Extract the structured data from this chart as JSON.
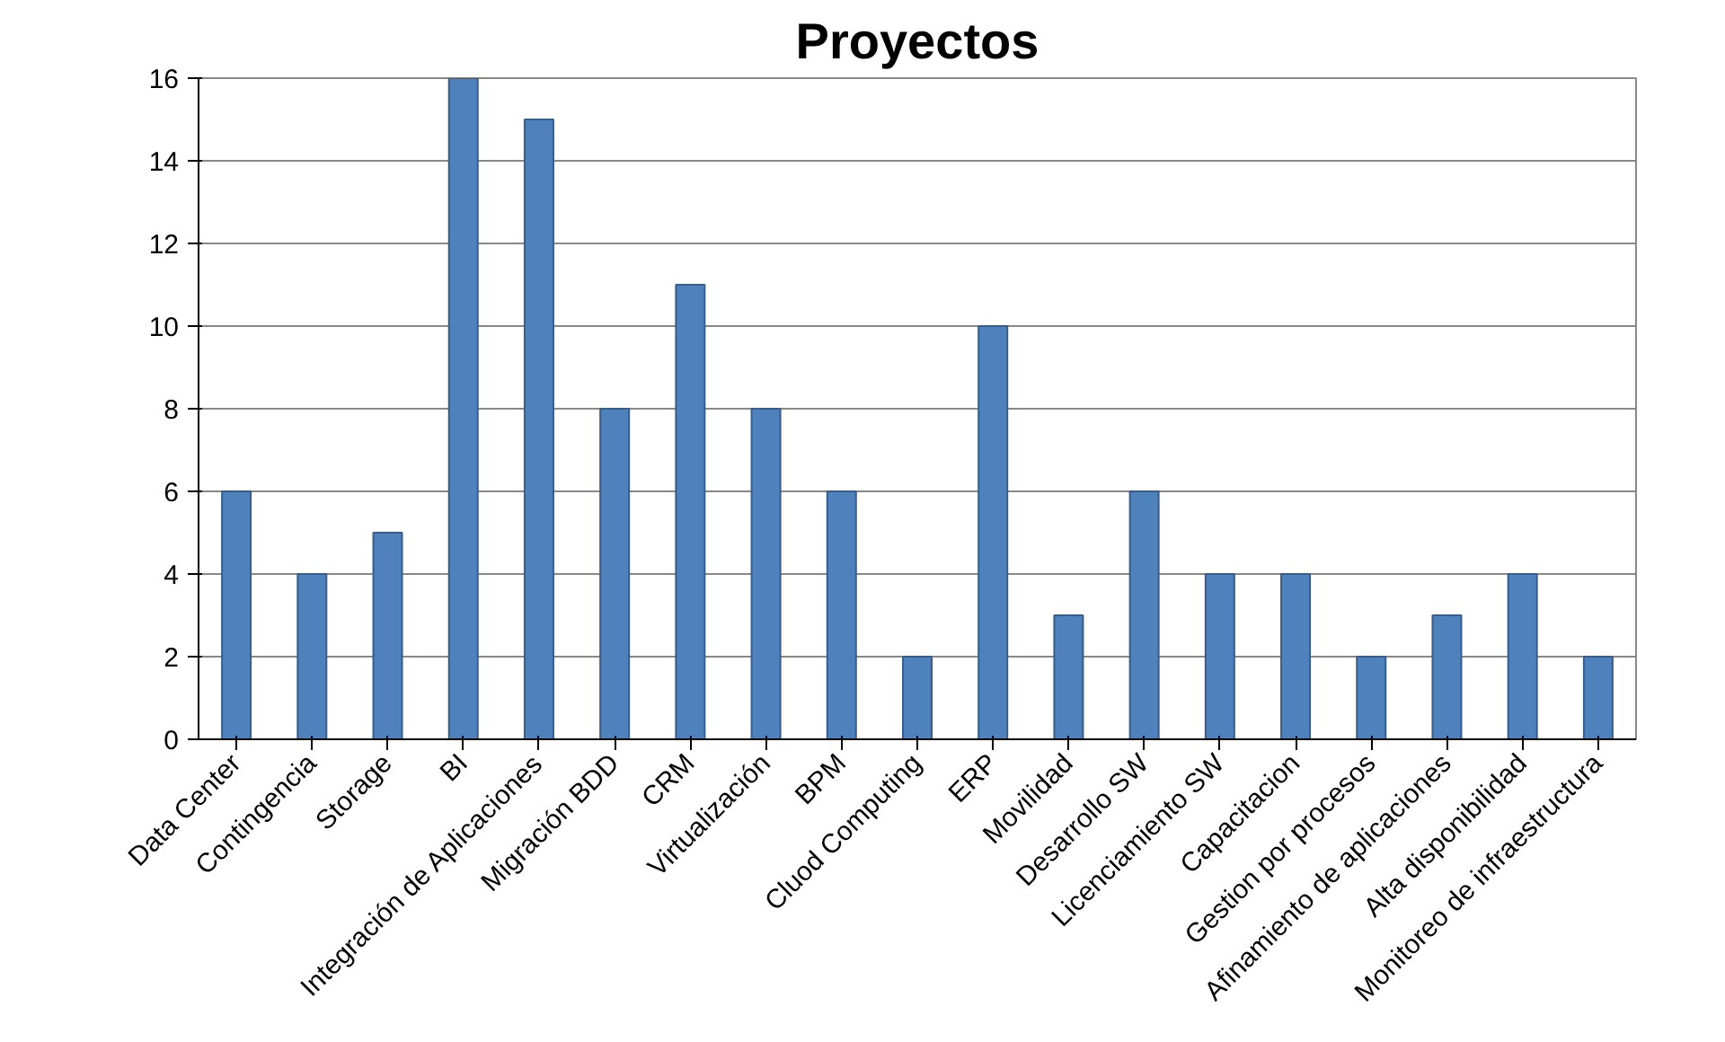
{
  "chart_data": {
    "type": "bar",
    "title": "Proyectos",
    "categories": [
      "Data Center",
      "Contingencia",
      "Storage",
      "BI",
      "Integración de Aplicaciones",
      "Migración BDD",
      "CRM",
      "Virtualización",
      "BPM",
      "Cluod Computing",
      "ERP",
      "Movilidad",
      "Desarrollo SW",
      "Licenciamiento SW",
      "Capacitacion",
      "Gestion por procesos",
      "Afinamiento de aplicaciones",
      "Alta disponibilidad",
      "Monitoreo de infraestructura"
    ],
    "values": [
      6,
      4,
      5,
      16,
      15,
      8,
      11,
      8,
      6,
      2,
      10,
      3,
      6,
      4,
      4,
      2,
      3,
      4,
      2
    ],
    "color": "#4f81bd",
    "ylim": [
      0,
      16
    ],
    "yticks": [
      0,
      2,
      4,
      6,
      8,
      10,
      12,
      14,
      16
    ],
    "grid": "y"
  }
}
